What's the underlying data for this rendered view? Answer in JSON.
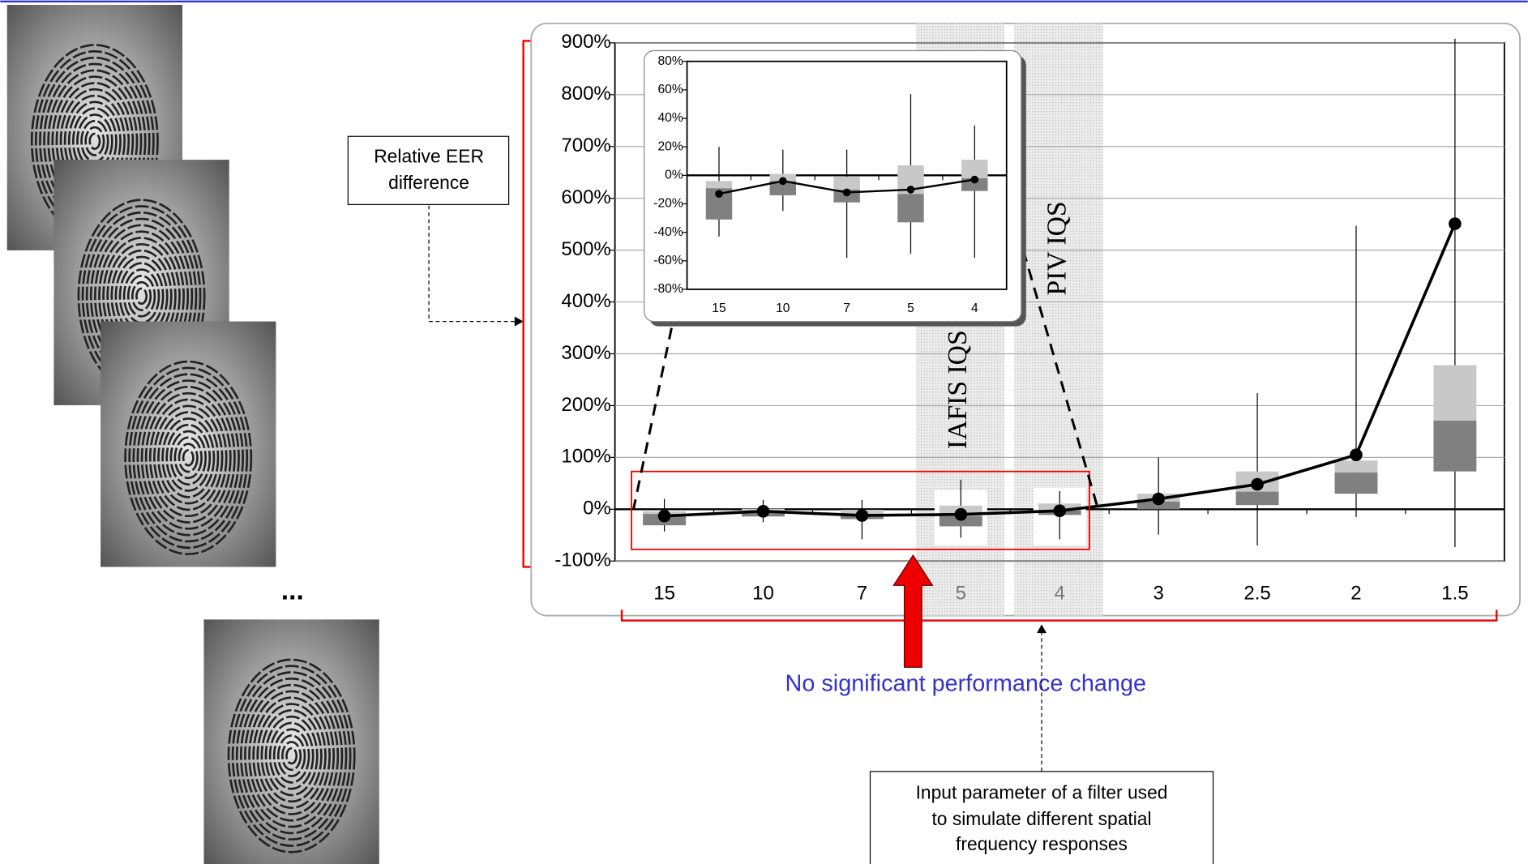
{
  "chart_data": [
    {
      "type": "box",
      "categories": [
        "15",
        "10",
        "7",
        "5",
        "4",
        "3",
        "2.5",
        "2",
        "1.5"
      ],
      "boxes": [
        {
          "min": -43,
          "q1": -31,
          "median": -9,
          "q3": -4,
          "max": 20
        },
        {
          "min": -25,
          "q1": -14,
          "median": -4,
          "q3": 1,
          "max": 18
        },
        {
          "min": -58,
          "q1": -19,
          "median": -10,
          "q3": -1,
          "max": 18
        },
        {
          "min": -55,
          "q1": -33,
          "median": -13,
          "q3": 7,
          "max": 57
        },
        {
          "min": -58,
          "q1": -11,
          "median": -2,
          "q3": 11,
          "max": 35
        },
        {
          "min": -49,
          "q1": 0,
          "median": 15,
          "q3": 30,
          "max": 100
        },
        {
          "min": -70,
          "q1": 8,
          "median": 34,
          "q3": 73,
          "max": 224
        },
        {
          "min": -15,
          "q1": 30,
          "median": 71,
          "q3": 94,
          "max": 547
        },
        {
          "min": -73,
          "q1": 73,
          "median": 171,
          "q3": 278,
          "max": 908
        }
      ],
      "mean": [
        -13,
        -4,
        -12,
        -10,
        -3,
        20,
        48,
        105,
        551
      ],
      "colors": {
        "lower": "#808080",
        "upper": "#c8c8c8",
        "mean": "#000000"
      },
      "ylim": [
        -100,
        900
      ],
      "yticks": [
        {
          "value": -100,
          "label": "-100%"
        },
        {
          "value": 0,
          "label": "0%"
        },
        {
          "value": 100,
          "label": "100%"
        },
        {
          "value": 200,
          "label": "200%"
        },
        {
          "value": 300,
          "label": "300%"
        },
        {
          "value": 400,
          "label": "400%"
        },
        {
          "value": 500,
          "label": "500%"
        },
        {
          "value": 600,
          "label": "600%"
        },
        {
          "value": 700,
          "label": "700%"
        },
        {
          "value": 800,
          "label": "800%"
        },
        {
          "value": 900,
          "label": "900%"
        }
      ],
      "grid": true
    },
    {
      "type": "box",
      "categories": [
        "15",
        "10",
        "7",
        "5",
        "4"
      ],
      "boxes": [
        {
          "min": -43,
          "q1": -31,
          "median": -9,
          "q3": -4,
          "max": 20
        },
        {
          "min": -25,
          "q1": -14,
          "median": -4,
          "q3": 1,
          "max": 18
        },
        {
          "min": -58,
          "q1": -19,
          "median": -10,
          "q3": -1,
          "max": 18
        },
        {
          "min": -55,
          "q1": -33,
          "median": -13,
          "q3": 7,
          "max": 57
        },
        {
          "min": -58,
          "q1": -11,
          "median": -2,
          "q3": 11,
          "max": 35
        }
      ],
      "mean": [
        -13,
        -4,
        -12,
        -10,
        -3
      ],
      "colors": {
        "lower": "#808080",
        "upper": "#c8c8c8",
        "mean": "#000000"
      },
      "ylim": [
        -80,
        80
      ],
      "yticks": [
        {
          "value": -80,
          "label": "-80%"
        },
        {
          "value": -60,
          "label": "-60%"
        },
        {
          "value": -40,
          "label": "-40%"
        },
        {
          "value": -20,
          "label": "-20%"
        },
        {
          "value": 0,
          "label": "0%"
        },
        {
          "value": 20,
          "label": "20%"
        },
        {
          "value": 40,
          "label": "40%"
        },
        {
          "value": 60,
          "label": "60%"
        },
        {
          "value": 80,
          "label": "80%"
        }
      ],
      "grid": false
    }
  ],
  "annotations": {
    "y_callout": [
      "Relative EER",
      "difference"
    ],
    "x_callout": [
      "Input parameter of a filter used",
      "to simulate different spatial",
      "frequency responses"
    ],
    "note": "No significant performance change",
    "iafis": "IAFIS IQS",
    "piv": "PIV IQS",
    "ellipsis": "..."
  }
}
